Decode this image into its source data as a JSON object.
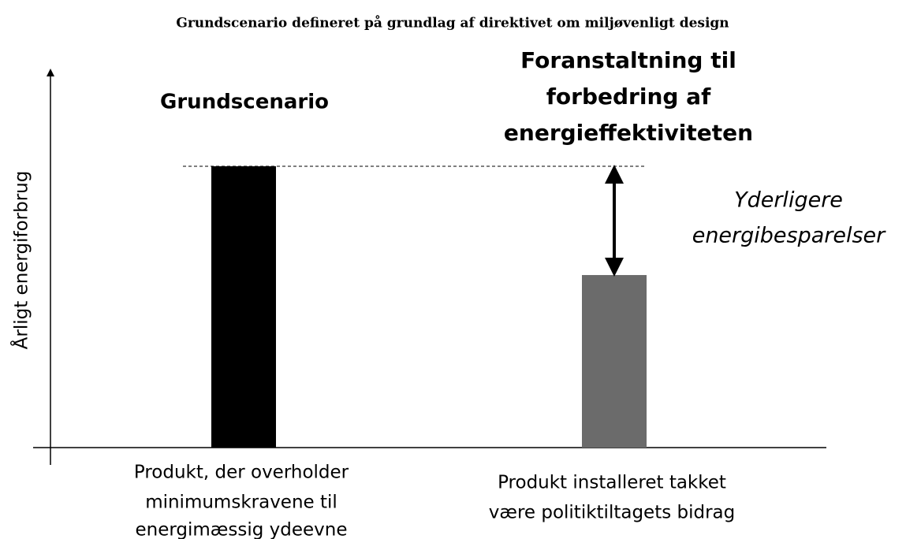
{
  "chart_data": {
    "type": "bar",
    "title": "Grundscenario defineret på grundlag af direktivet om miljøvenligt design",
    "ylabel": "Årligt energiforbrug",
    "categories": [
      [
        "Produkt, der overholder",
        "minimumskravene til",
        "energimæssig ydeevne"
      ],
      [
        "Produkt installeret takket",
        "være politiktiltagets bidrag"
      ]
    ],
    "values": [
      75,
      46
    ],
    "colors": [
      "#000000",
      "#6b6b6b"
    ],
    "ylim": [
      0,
      100
    ],
    "annotations": [
      [
        "Grundscenario"
      ],
      [
        "Foranstaltning til",
        "forbedring af",
        "energieffektiviteten"
      ],
      [
        "Yderligere",
        "energibesparelser"
      ]
    ]
  }
}
